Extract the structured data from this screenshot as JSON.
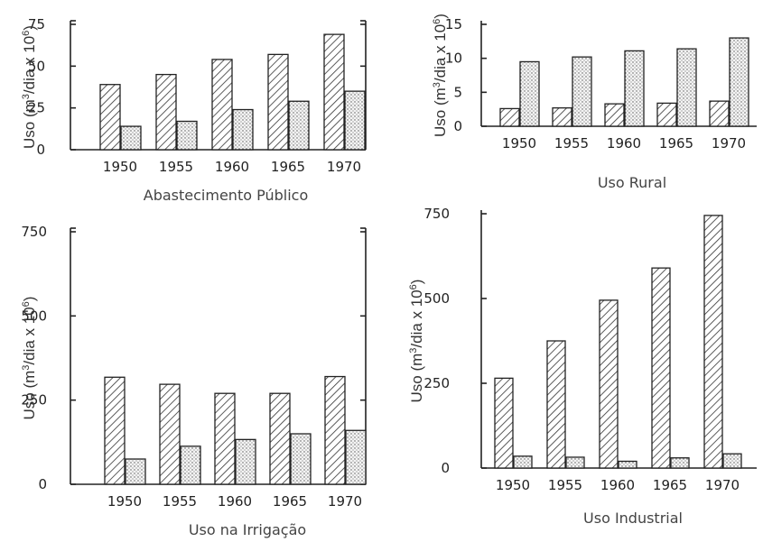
{
  "ylabel_parts": {
    "pre": "Uso (m",
    "sup1": "3",
    "mid": "/dia x 10",
    "sup2": "6",
    "post": ")"
  },
  "chart_data": [
    {
      "type": "bar",
      "title": "Abastecimento Público",
      "categories": [
        "1950",
        "1955",
        "1960",
        "1965",
        "1970"
      ],
      "series": [
        {
          "values": [
            39,
            45,
            54,
            57,
            69
          ],
          "pattern": "hatched"
        },
        {
          "values": [
            14,
            17,
            24,
            29,
            35
          ],
          "pattern": "dotted"
        }
      ],
      "yticks": [
        "0",
        "25",
        "50",
        "75"
      ],
      "ylim": [
        0,
        75
      ],
      "ylabel": "Uso (m3/dia x 106)"
    },
    {
      "type": "bar",
      "title": "Uso Rural",
      "categories": [
        "1950",
        "1955",
        "1960",
        "1965",
        "1970"
      ],
      "series": [
        {
          "values": [
            2.6,
            2.7,
            3.3,
            3.4,
            3.7
          ],
          "pattern": "hatched"
        },
        {
          "values": [
            9.5,
            10.2,
            11.1,
            11.4,
            13.0
          ],
          "pattern": "dotted"
        }
      ],
      "yticks": [
        "0",
        "5",
        "10",
        "15"
      ],
      "ylim": [
        0,
        15
      ],
      "ylabel": "Uso (m3/dia x 106)"
    },
    {
      "type": "bar",
      "title": "Uso na Irrigação",
      "categories": [
        "1950",
        "1955",
        "1960",
        "1965",
        "1970"
      ],
      "series": [
        {
          "values": [
            318,
            297,
            270,
            270,
            320
          ],
          "pattern": "hatched"
        },
        {
          "values": [
            75,
            113,
            133,
            150,
            160
          ],
          "pattern": "dotted"
        }
      ],
      "yticks": [
        "0",
        "250",
        "500",
        "750"
      ],
      "ylim": [
        0,
        750
      ],
      "ylabel": "Uso (m3/dia x 106)"
    },
    {
      "type": "bar",
      "title": "Uso Industrial",
      "categories": [
        "1950",
        "1955",
        "1960",
        "1965",
        "1970"
      ],
      "series": [
        {
          "values": [
            265,
            375,
            495,
            590,
            745
          ],
          "pattern": "hatched"
        },
        {
          "values": [
            35,
            32,
            20,
            30,
            42
          ],
          "pattern": "dotted"
        }
      ],
      "yticks": [
        "0",
        "250",
        "500",
        "750"
      ],
      "ylim": [
        0,
        750
      ],
      "ylabel": "Uso (m3/dia x 106)"
    }
  ]
}
